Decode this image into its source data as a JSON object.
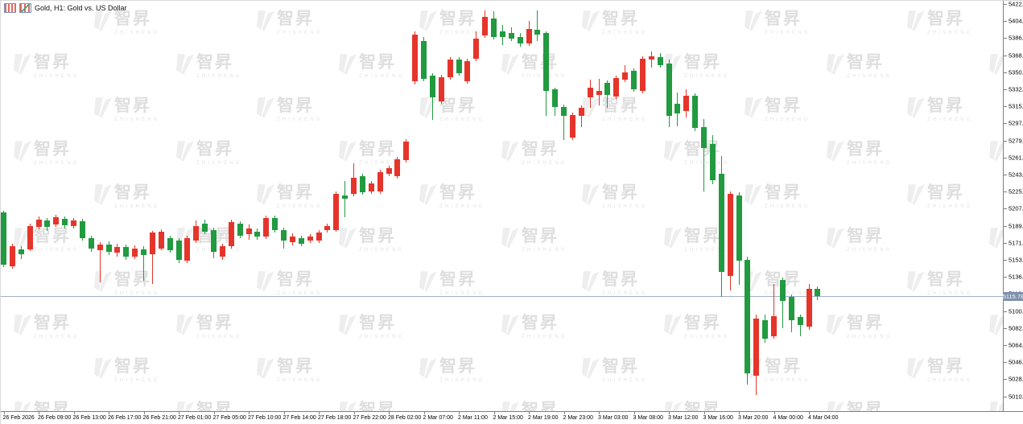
{
  "header": {
    "title": "Gold, H1:  Gold vs. US Dollar"
  },
  "watermark": {
    "cn": "智昇",
    "en": "ZHISHENG"
  },
  "price_axis": {
    "current": "5115.78",
    "ticks": [
      5422.42,
      5404.52,
      5386.62,
      5368.72,
      5350.82,
      5332.92,
      5315.02,
      5297.12,
      5279.22,
      5261.32,
      5243.42,
      5225.52,
      5207.62,
      5189.72,
      5171.82,
      5153.92,
      5136.02,
      5118.12,
      5100.22,
      5082.32,
      5064.42,
      5046.52,
      5028.62,
      5010.72
    ]
  },
  "time_axis": {
    "labels": [
      "26 Feb 2026",
      "26 Feb 09:00",
      "26 Feb 13:00",
      "26 Feb 17:00",
      "26 Feb 21:00",
      "27 Feb 01:00",
      "27 Feb 05:00",
      "27 Feb 10:00",
      "27 Feb 14:00",
      "27 Feb 18:00",
      "27 Feb 22:00",
      "28 Feb 02:00",
      "2 Mar 07:00",
      "2 Mar 11:00",
      "2 Mar 15:00",
      "2 Mar 19:00",
      "2 Mar 23:00",
      "3 Mar 03:00",
      "3 Mar 08:00",
      "3 Mar 12:00",
      "3 Mar 16:00",
      "3 Mar 20:00",
      "4 Mar 00:00",
      "4 Mar 04:00"
    ]
  },
  "chart_data": {
    "type": "candlestick",
    "symbol": "Gold",
    "timeframe": "H1",
    "title": "Gold, H1: Gold vs. US Dollar",
    "ylim": [
      5003,
      5426
    ],
    "grid": false,
    "legend": false,
    "bull_color": "#e5352b",
    "bear_color": "#219a40",
    "current_price": 5115.78,
    "current_price_line_color": "#9fb0c6",
    "current_price_badge_color": "#7d90ad",
    "label_every": 4,
    "ohlc_format": "[open, high, low, close]; red = up, green = down",
    "candles": [
      [
        5203.77,
        5205.46,
        5146.37,
        5148.9
      ],
      [
        5147.21,
        5170.85,
        5144.68,
        5168.32
      ],
      [
        5164.94,
        5168.32,
        5154.81,
        5159.87
      ],
      [
        5164.94,
        5191.95,
        5163.25,
        5189.42
      ],
      [
        5188.58,
        5199.55,
        5186.04,
        5196.17
      ],
      [
        5195.33,
        5197.86,
        5184.36,
        5188.58
      ],
      [
        5191.11,
        5201.24,
        5188.58,
        5198.71
      ],
      [
        5197.02,
        5199.55,
        5186.89,
        5190.26
      ],
      [
        5189.42,
        5197.86,
        5186.89,
        5195.33
      ],
      [
        5194.48,
        5197.02,
        5174.23,
        5176.76
      ],
      [
        5176.76,
        5179.29,
        5162.4,
        5165.78
      ],
      [
        5164.09,
        5172.54,
        5130.33,
        5170.01
      ],
      [
        5170.01,
        5173.38,
        5159.03,
        5162.4
      ],
      [
        5161.56,
        5170.85,
        5157.34,
        5167.47
      ],
      [
        5167.47,
        5170.0,
        5153.96,
        5157.34
      ],
      [
        5157.34,
        5169.16,
        5154.81,
        5165.78
      ],
      [
        5164.94,
        5168.32,
        5132.01,
        5159.03
      ],
      [
        5159.87,
        5184.36,
        5128.64,
        5182.67
      ],
      [
        5165.78,
        5186.04,
        5164.09,
        5183.51
      ],
      [
        5176.76,
        5179.29,
        5161.56,
        5164.09
      ],
      [
        5174.23,
        5176.76,
        5150.59,
        5153.96
      ],
      [
        5153.12,
        5179.29,
        5150.59,
        5176.76
      ],
      [
        5174.23,
        5195.33,
        5171.69,
        5189.42
      ],
      [
        5191.95,
        5196.17,
        5180.98,
        5183.51
      ],
      [
        5185.2,
        5187.73,
        5155.65,
        5162.4
      ],
      [
        5157.34,
        5170.85,
        5153.96,
        5168.32
      ],
      [
        5168.32,
        5196.17,
        5165.78,
        5193.64
      ],
      [
        5191.95,
        5194.48,
        5176.76,
        5179.29
      ],
      [
        5180.98,
        5191.11,
        5175.07,
        5186.89
      ],
      [
        5183.51,
        5186.89,
        5175.07,
        5178.45
      ],
      [
        5178.45,
        5200.4,
        5175.92,
        5197.86
      ],
      [
        5197.86,
        5200.4,
        5182.67,
        5185.2
      ],
      [
        5185.2,
        5187.73,
        5165.78,
        5174.23
      ],
      [
        5172.54,
        5181.83,
        5169.16,
        5178.45
      ],
      [
        5176.76,
        5179.29,
        5168.32,
        5170.85
      ],
      [
        5174.23,
        5180.98,
        5171.69,
        5178.45
      ],
      [
        5174.23,
        5185.2,
        5171.69,
        5182.67
      ],
      [
        5185.2,
        5191.95,
        5182.67,
        5189.42
      ],
      [
        5185.2,
        5225.72,
        5183.51,
        5223.19
      ],
      [
        5221.5,
        5236.7,
        5198.71,
        5218.12
      ],
      [
        5223.19,
        5255.27,
        5220.65,
        5240.07
      ],
      [
        5241.76,
        5244.3,
        5222.34,
        5224.87
      ],
      [
        5225.72,
        5236.7,
        5223.19,
        5234.17
      ],
      [
        5225.72,
        5248.52,
        5223.19,
        5245.99
      ],
      [
        5244.3,
        5252.74,
        5241.76,
        5250.2
      ],
      [
        5241.76,
        5262.02,
        5239.23,
        5259.49
      ],
      [
        5258.65,
        5280.59,
        5256.12,
        5278.06
      ],
      [
        5341.38,
        5393.72,
        5338.0,
        5390.34
      ],
      [
        5383.59,
        5387.81,
        5341.38,
        5343.91
      ],
      [
        5347.29,
        5349.82,
        5300.86,
        5324.49
      ],
      [
        5320.27,
        5348.13,
        5317.74,
        5345.6
      ],
      [
        5345.6,
        5366.7,
        5343.07,
        5364.17
      ],
      [
        5364.17,
        5366.7,
        5347.29,
        5349.82
      ],
      [
        5341.38,
        5365.02,
        5338.84,
        5362.49
      ],
      [
        5365.02,
        5393.72,
        5362.49,
        5386.12
      ],
      [
        5389.49,
        5415.67,
        5386.97,
        5408.91
      ],
      [
        5407.22,
        5414.82,
        5385.27,
        5387.81
      ],
      [
        5393.72,
        5400.47,
        5379.37,
        5387.81
      ],
      [
        5392.03,
        5397.94,
        5383.59,
        5386.12
      ],
      [
        5387.81,
        5392.03,
        5377.68,
        5381.05
      ],
      [
        5381.05,
        5404.69,
        5378.52,
        5396.25
      ],
      [
        5395.41,
        5415.67,
        5383.59,
        5390.34
      ],
      [
        5392.03,
        5393.72,
        5305.08,
        5331.24
      ],
      [
        5332.93,
        5334.61,
        5305.08,
        5314.36
      ],
      [
        5314.36,
        5316.89,
        5279.75,
        5305.08
      ],
      [
        5282.28,
        5308.45,
        5279.75,
        5305.93
      ],
      [
        5305.08,
        5316.05,
        5293.26,
        5313.51
      ],
      [
        5324.49,
        5343.07,
        5313.51,
        5334.61
      ],
      [
        5327.02,
        5343.91,
        5316.05,
        5331.24
      ],
      [
        5339.69,
        5342.22,
        5313.51,
        5327.02
      ],
      [
        5325.33,
        5347.29,
        5322.8,
        5344.76
      ],
      [
        5343.07,
        5358.26,
        5340.53,
        5350.66
      ],
      [
        5352.35,
        5354.89,
        5330.4,
        5332.93
      ],
      [
        5331.24,
        5367.55,
        5328.71,
        5365.02
      ],
      [
        5364.17,
        5372.61,
        5355.73,
        5367.55
      ],
      [
        5366.7,
        5370.93,
        5355.73,
        5358.26
      ],
      [
        5359.94,
        5364.17,
        5293.26,
        5305.08
      ],
      [
        5317.74,
        5329.56,
        5294.1,
        5307.61
      ],
      [
        5310.14,
        5332.93,
        5303.39,
        5326.17
      ],
      [
        5326.17,
        5328.71,
        5289.04,
        5292.41
      ],
      [
        5293.26,
        5301.7,
        5225.72,
        5271.31
      ],
      [
        5275.53,
        5284.81,
        5233.32,
        5237.54
      ],
      [
        5244.3,
        5262.86,
        5115.13,
        5141.3
      ],
      [
        5137.08,
        5225.72,
        5121.89,
        5223.19
      ],
      [
        5221.5,
        5224.87,
        5127.79,
        5153.12
      ],
      [
        5153.96,
        5157.34,
        5023.11,
        5034.93
      ],
      [
        5032.4,
        5096.56,
        5012.14,
        5092.34
      ],
      [
        5090.65,
        5096.56,
        5067.01,
        5071.23
      ],
      [
        5073.76,
        5128.64,
        5071.23,
        5094.87
      ],
      [
        5132.86,
        5135.39,
        5082.21,
        5110.91
      ],
      [
        5115.13,
        5117.66,
        5077.99,
        5090.65
      ],
      [
        5094.02,
        5096.56,
        5073.76,
        5085.58
      ],
      [
        5083.89,
        5128.64,
        5080.52,
        5123.57
      ],
      [
        5123.57,
        5126.11,
        5111.75,
        5115.78
      ]
    ]
  }
}
